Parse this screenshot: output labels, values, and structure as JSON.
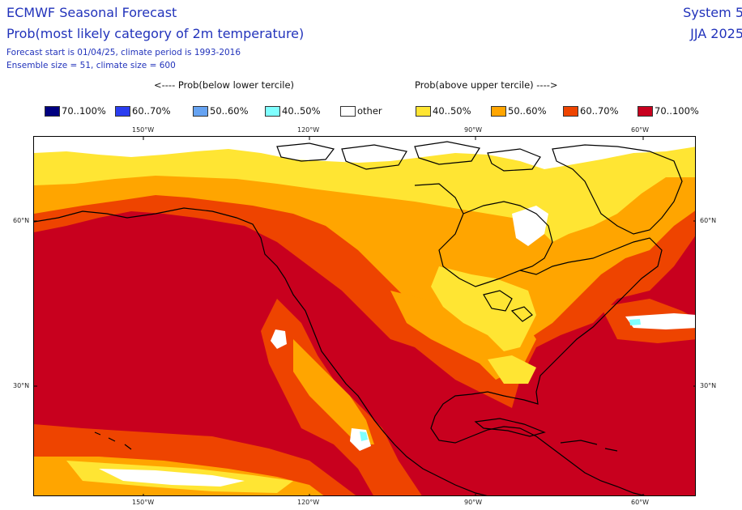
{
  "header": {
    "title": "ECMWF Seasonal Forecast",
    "subtitle": "Prob(most likely category of 2m temperature)",
    "forecast_line": "Forecast start is 01/04/25, climate period is 1993-2016",
    "ensemble_line": "Ensemble size = 51, climate size = 600",
    "system": "System 5",
    "season": "JJA 2025"
  },
  "legend": {
    "below_label": "<---- Prob(below lower tercile)",
    "above_label": "Prob(above upper tercile) ---->",
    "items": [
      {
        "label": "70..100%",
        "color": "#000080"
      },
      {
        "label": "60..70%",
        "color": "#2a3df0"
      },
      {
        "label": "50..60%",
        "color": "#66a3f2"
      },
      {
        "label": "40..50%",
        "color": "#7fffff"
      },
      {
        "label": "other",
        "color": "#ffffff"
      },
      {
        "label": "40..50%",
        "color": "#ffe533"
      },
      {
        "label": "50..60%",
        "color": "#ffa500"
      },
      {
        "label": "60..70%",
        "color": "#ee4400"
      },
      {
        "label": "70..100%",
        "color": "#c8001e"
      }
    ]
  },
  "axes": {
    "lon_labels": [
      "150°W",
      "120°W",
      "90°W",
      "60°W"
    ],
    "lat_labels": [
      "60°N",
      "30°N"
    ]
  }
}
